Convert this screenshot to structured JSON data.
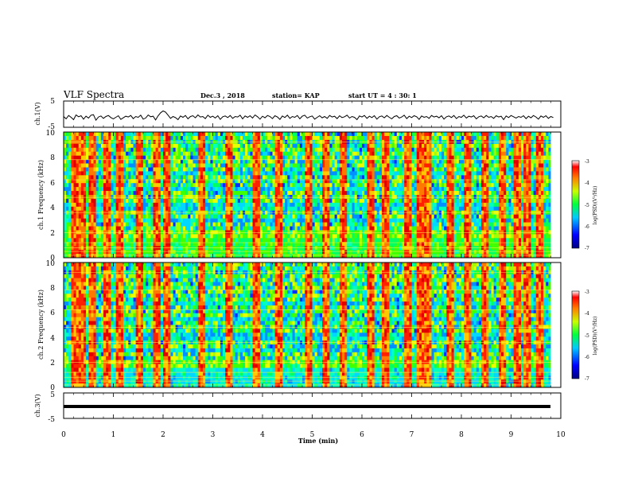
{
  "header": {
    "title": "VLF Spectra",
    "date": "Dec.3 , 2018",
    "station": "station= KAP",
    "start": "start UT = 4 : 30: 1"
  },
  "chart_data": [
    {
      "type": "line",
      "panel": "ch1-waveform",
      "ylabel": "ch.1(V)",
      "ylim": [
        -5,
        5
      ],
      "yticks": [
        "5",
        "-5"
      ],
      "xlim": [
        0,
        9.8
      ],
      "series": [
        {
          "values_note_only": false
        }
      ],
      "x_step": 0.05,
      "values": [
        -0.9,
        -1.8,
        -0.5,
        -1.2,
        -2.1,
        -0.3,
        -1.0,
        -0.6,
        -1.9,
        -0.8,
        -1.5,
        -0.4,
        -0.2,
        -2.3,
        -1.1,
        -0.7,
        -1.6,
        -0.9,
        -0.5,
        -1.3,
        -1.8,
        -1.2,
        -0.6,
        -2.0,
        -1.4,
        -0.8,
        -1.1,
        -0.5,
        -1.7,
        -0.9,
        -1.2,
        -0.4,
        -1.9,
        -1.5,
        -0.3,
        -1.0,
        -0.8,
        -2.2,
        -0.6,
        0.5,
        1.2,
        0.8,
        -0.4,
        -1.6,
        -0.9,
        -1.3,
        -2.1,
        -0.7,
        -1.2,
        -0.5,
        -1.8,
        -0.9,
        -0.6,
        -1.4,
        -0.3,
        -1.1,
        -0.9,
        -1.7,
        -0.4,
        -1.2,
        -0.8,
        -1.5,
        -0.6,
        -2.0,
        -1.0,
        -0.7,
        -1.3,
        -0.5,
        -1.6,
        -0.9,
        -1.1,
        -0.4,
        -1.8,
        -0.7,
        -1.2,
        -0.6,
        -1.5,
        -0.3,
        -1.0,
        -1.9,
        -0.8,
        -1.4,
        -0.5,
        -0.9,
        -1.7,
        -0.6,
        -1.1,
        -2.0,
        -0.7,
        -1.3,
        -0.4,
        -1.6,
        -0.9,
        -1.2,
        -0.5,
        -1.8,
        -0.8,
        -0.4,
        -1.5,
        -1.0,
        -0.7,
        -1.9,
        -1.2,
        -0.6,
        -1.4,
        -0.9,
        -1.6,
        -0.5,
        -1.1,
        -0.8,
        -1.7,
        -0.6,
        -1.3,
        -1.0,
        -0.4,
        -1.5,
        -0.9,
        -1.2,
        -2.1,
        -0.7,
        -1.1,
        -0.5,
        -1.6,
        -0.8,
        -1.3,
        -0.6,
        -1.9,
        -1.0,
        -0.7,
        -1.4,
        -0.5,
        -1.2,
        -1.8,
        -0.9,
        -0.6,
        -1.5,
        -1.1,
        -0.4,
        -1.7,
        -0.8,
        -1.3,
        -0.6,
        -1.0,
        -2.0,
        -0.7,
        -1.2,
        -0.9,
        -1.6,
        -0.5,
        -1.1,
        -0.8,
        -1.4,
        -0.6,
        -1.9,
        -1.0,
        -0.7,
        -1.3,
        -0.5,
        -1.7,
        -0.9,
        -1.2,
        -0.4,
        -1.5,
        -0.8,
        -1.1,
        -0.6,
        -1.8,
        -1.0,
        -0.7,
        -1.4,
        -0.5,
        -1.2,
        -0.9,
        -1.6,
        -0.6,
        -1.1,
        -0.8,
        -2.1,
        -0.7,
        -1.3,
        -0.5,
        -1.0,
        -1.5,
        -0.9,
        -1.2,
        -0.6,
        -1.7,
        -0.8,
        -1.4,
        -0.5,
        -1.1,
        -1.9,
        -0.7,
        -1.2,
        -0.6,
        -1.6,
        -0.9,
        -1.3
      ]
    },
    {
      "type": "heatmap",
      "panel": "ch1-spectrogram",
      "ylabel": "ch.1 Frequency (kHz)",
      "ylim": [
        0,
        10
      ],
      "yticks": [
        "0",
        "2",
        "4",
        "6",
        "8",
        "10"
      ],
      "xlim": [
        0,
        9.8
      ],
      "colorbar": {
        "label": "log(PSD)(V²/Hz)",
        "range": [
          -7,
          -3
        ],
        "ticks": [
          "-3",
          "-4",
          "-5",
          "-6",
          "-7"
        ]
      },
      "strong_bursts_min": [
        0.2,
        0.35,
        0.55,
        0.85,
        1.1,
        1.5,
        1.85,
        2.05,
        2.75,
        3.3,
        3.85,
        4.3,
        4.9,
        5.25,
        5.6,
        6.15,
        6.45,
        6.9,
        7.15,
        7.3,
        7.75,
        8.1,
        8.45,
        8.8,
        9.1,
        9.3,
        9.55
      ],
      "band_hint": "strong emission 0–2 kHz, mixed/low 2–10 kHz"
    },
    {
      "type": "heatmap",
      "panel": "ch2-spectrogram",
      "ylabel": "ch.2 Frequency (kHz)",
      "ylim": [
        0,
        10
      ],
      "yticks": [
        "0",
        "2",
        "4",
        "6",
        "8",
        "10"
      ],
      "xlim": [
        0,
        9.8
      ],
      "colorbar": {
        "label": "log(PSD)(V²/Hz)",
        "range": [
          -7,
          -3
        ],
        "ticks": [
          "-3",
          "-4",
          "-5",
          "-6",
          "-7"
        ]
      },
      "strong_bursts_min": [
        0.2,
        0.35,
        0.55,
        0.85,
        1.1,
        1.5,
        1.85,
        2.05,
        2.75,
        3.3,
        3.85,
        4.3,
        4.9,
        5.25,
        5.6,
        6.15,
        6.45,
        6.9,
        7.15,
        7.3,
        7.75,
        8.1,
        8.45,
        8.8,
        9.1,
        9.3,
        9.55
      ],
      "band_hint": "cyan/blue 0–2 kHz, mixed 2–10 kHz"
    },
    {
      "type": "line",
      "panel": "ch3-waveform",
      "ylabel": "ch.3(V)",
      "ylim": [
        -5,
        5
      ],
      "yticks": [
        "5",
        "-5"
      ],
      "xlim": [
        0,
        9.8
      ],
      "value_constant": 0
    }
  ],
  "x_axis": {
    "label": "Time (min)",
    "range": [
      0,
      10
    ],
    "ticks": [
      "0",
      "1",
      "2",
      "3",
      "4",
      "5",
      "6",
      "7",
      "8",
      "9",
      "10"
    ]
  },
  "colors": {
    "frame": "#000000",
    "background": "#ffffff"
  }
}
